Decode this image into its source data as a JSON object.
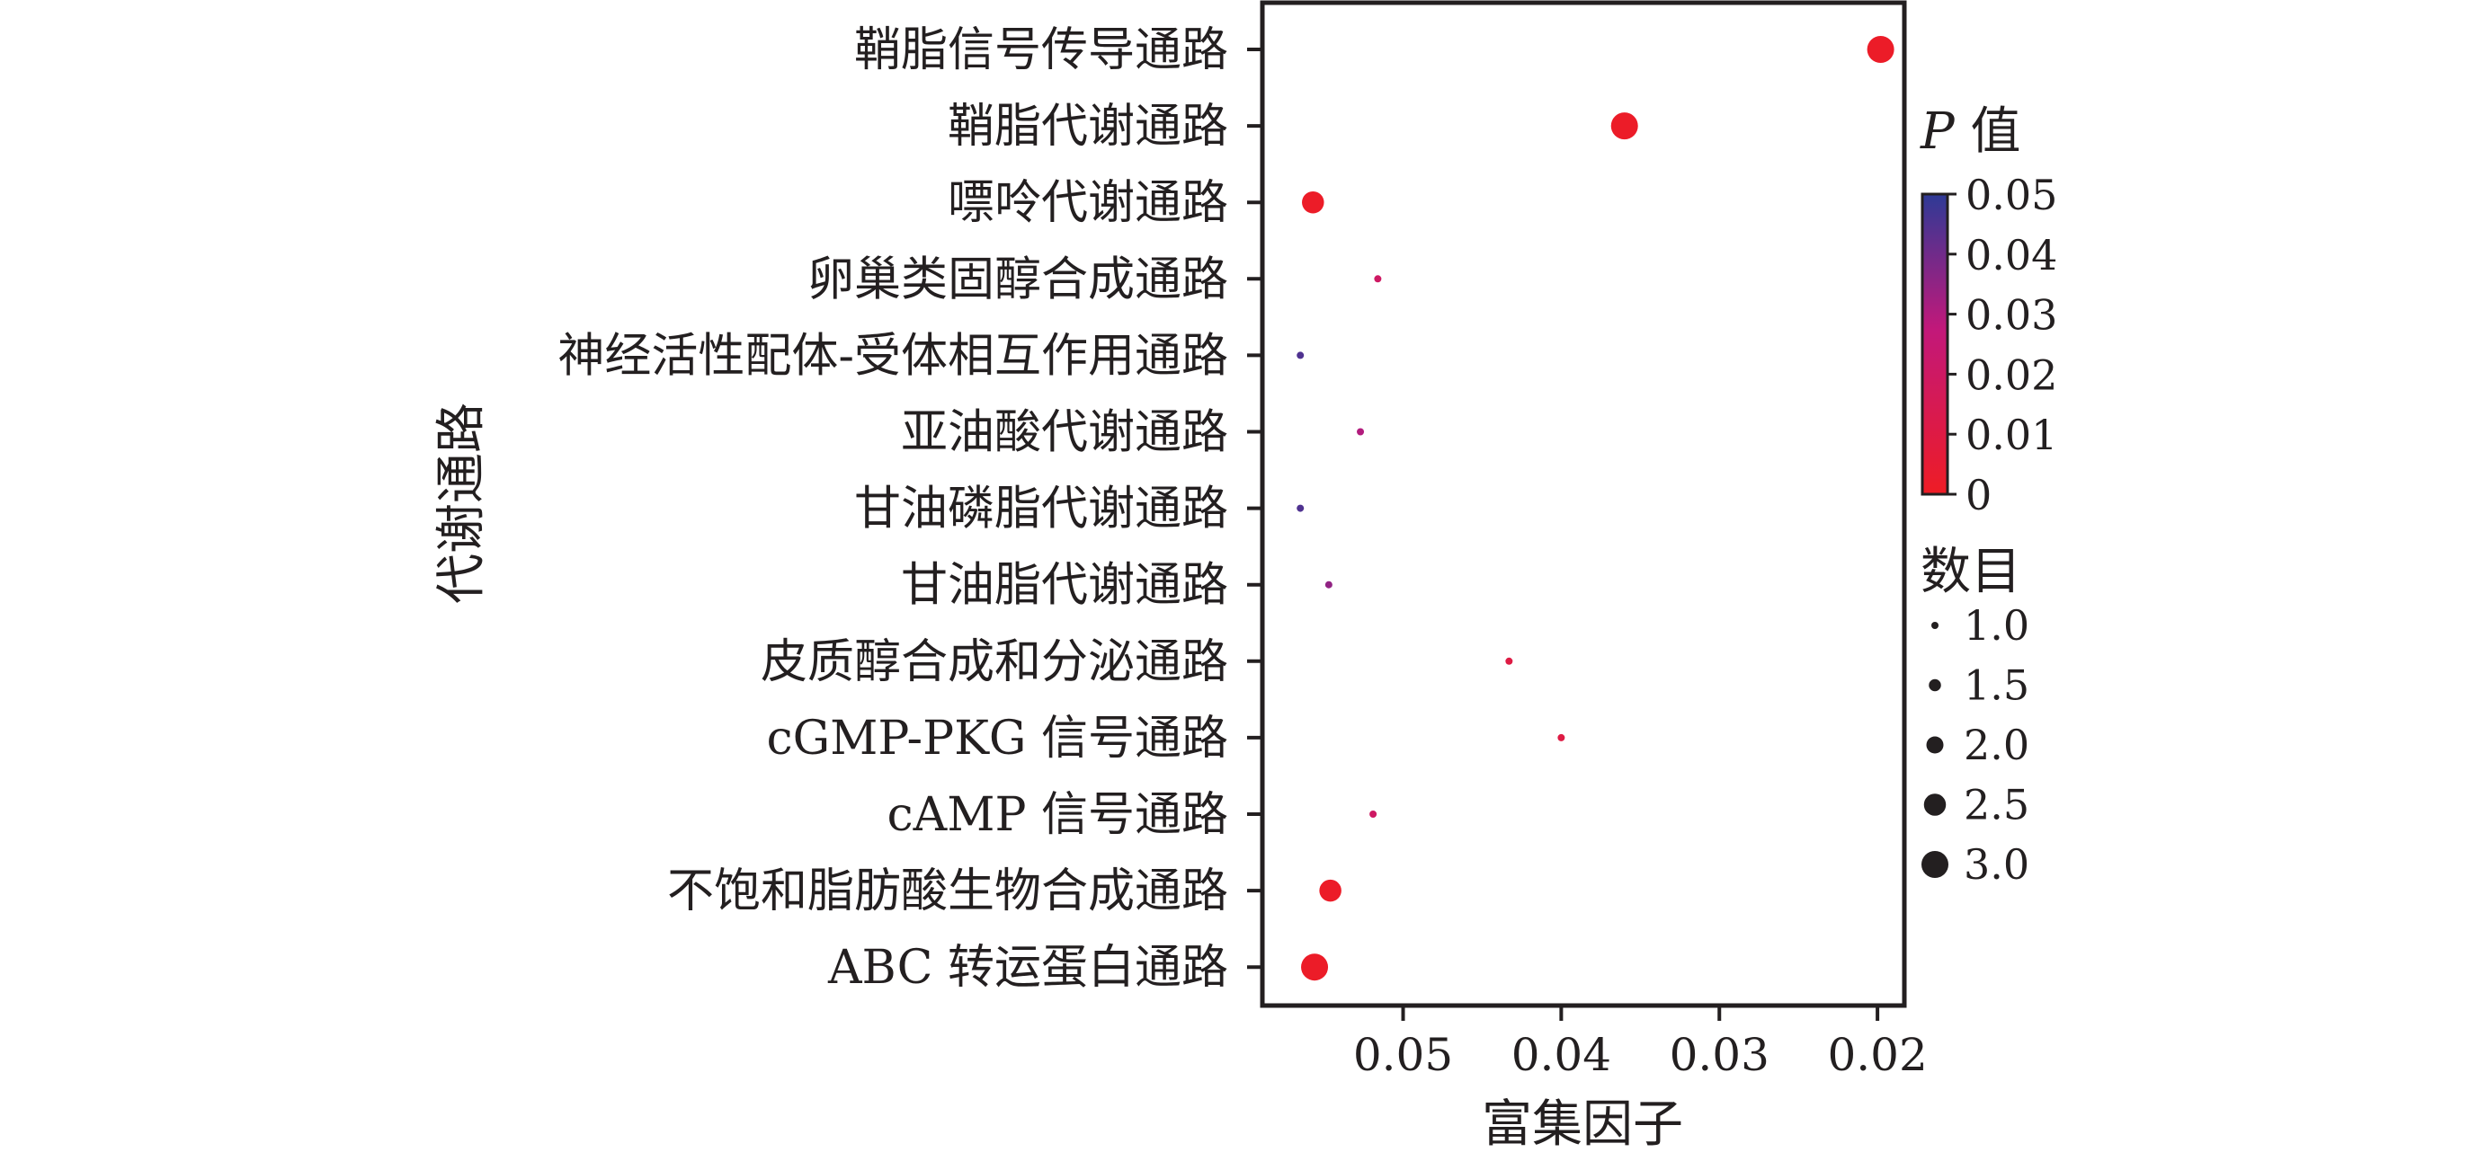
{
  "chart_data": {
    "type": "scatter",
    "title": "",
    "xlabel": "富集因子",
    "ylabel": "代谢通路",
    "x_reversed": true,
    "xlim": [
      0.0589,
      0.0183
    ],
    "x_ticks": [
      {
        "value": 0.05,
        "label": "0.05"
      },
      {
        "value": 0.04,
        "label": "0.04"
      },
      {
        "value": 0.03,
        "label": "0.03"
      },
      {
        "value": 0.02,
        "label": "0.02"
      }
    ],
    "grid": false,
    "categories": [
      "鞘脂信号传导通路",
      "鞘脂代谢通路",
      "嘌呤代谢通路",
      "卵巢类固醇合成通路",
      "神经活性配体-受体相互作用通路",
      "亚油酸代谢通路",
      "甘油磷脂代谢通路",
      "甘油脂代谢通路",
      "皮质醇合成和分泌通路",
      "cGMP-PKG 信号通路",
      "cAMP 信号通路",
      "不饱和脂肪酸生物合成通路",
      "ABC 转运蛋白通路"
    ],
    "points": [
      {
        "pathway": "鞘脂信号传导通路",
        "enrichment_factor": 0.0198,
        "p_value": 0.001,
        "count": 3
      },
      {
        "pathway": "鞘脂代谢通路",
        "enrichment_factor": 0.036,
        "p_value": 0.001,
        "count": 3
      },
      {
        "pathway": "嘌呤代谢通路",
        "enrichment_factor": 0.0557,
        "p_value": 0.001,
        "count": 2.5
      },
      {
        "pathway": "卵巢类固醇合成通路",
        "enrichment_factor": 0.0516,
        "p_value": 0.02,
        "count": 1
      },
      {
        "pathway": "神经活性配体-受体相互作用通路",
        "enrichment_factor": 0.0565,
        "p_value": 0.045,
        "count": 1
      },
      {
        "pathway": "亚油酸代谢通路",
        "enrichment_factor": 0.0527,
        "p_value": 0.03,
        "count": 1
      },
      {
        "pathway": "甘油磷脂代谢通路",
        "enrichment_factor": 0.0565,
        "p_value": 0.045,
        "count": 1
      },
      {
        "pathway": "甘油脂代谢通路",
        "enrichment_factor": 0.0547,
        "p_value": 0.035,
        "count": 1
      },
      {
        "pathway": "皮质醇合成和分泌通路",
        "enrichment_factor": 0.0433,
        "p_value": 0.01,
        "count": 1
      },
      {
        "pathway": "cGMP-PKG 信号通路",
        "enrichment_factor": 0.04,
        "p_value": 0.01,
        "count": 1
      },
      {
        "pathway": "cAMP 信号通路",
        "enrichment_factor": 0.0519,
        "p_value": 0.02,
        "count": 1
      },
      {
        "pathway": "不饱和脂肪酸生物合成通路",
        "enrichment_factor": 0.0546,
        "p_value": 0.001,
        "count": 2.5
      },
      {
        "pathway": "ABC 转运蛋白通路",
        "enrichment_factor": 0.0556,
        "p_value": 0.001,
        "count": 3
      }
    ],
    "color_scale": {
      "label_italic": "P",
      "label_rest": " 值",
      "min": 0,
      "max": 0.05,
      "low_color": "#ee1c25",
      "mid_color": "#c2187a",
      "high_color": "#2e3a96",
      "ticks": [
        {
          "value": 0.05,
          "label": "0.05"
        },
        {
          "value": 0.04,
          "label": "0.04"
        },
        {
          "value": 0.03,
          "label": "0.03"
        },
        {
          "value": 0.02,
          "label": "0.02"
        },
        {
          "value": 0.01,
          "label": "0.01"
        },
        {
          "value": 0,
          "label": "0"
        }
      ]
    },
    "size_scale": {
      "label": "数目",
      "color": "#231f20",
      "entries": [
        {
          "value": 1.0,
          "label": "1.0"
        },
        {
          "value": 1.5,
          "label": "1.5"
        },
        {
          "value": 2.0,
          "label": "2.0"
        },
        {
          "value": 2.5,
          "label": "2.5"
        },
        {
          "value": 3.0,
          "label": "3.0"
        }
      ]
    }
  }
}
